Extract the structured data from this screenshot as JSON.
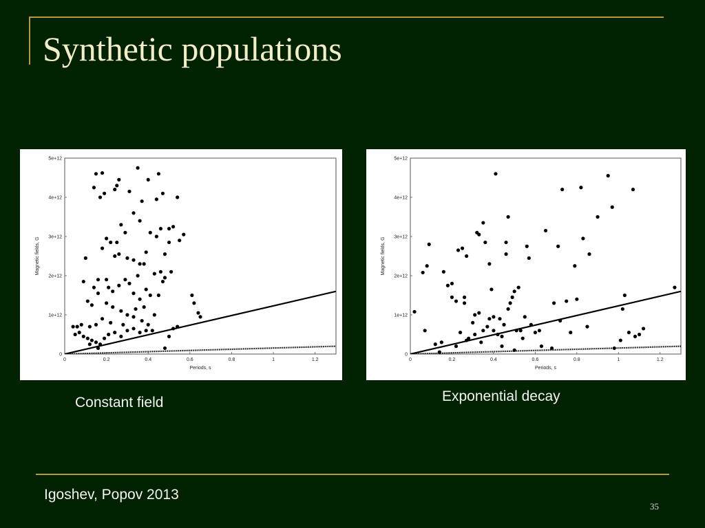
{
  "slide": {
    "title": "Synthetic populations",
    "footer_left": "Igoshev, Popov 2013",
    "page_number": "35",
    "colors": {
      "background": "#002200",
      "rule": "#b89a3a",
      "title": "#f3edc8",
      "text": "#f4f4f4"
    }
  },
  "captions": {
    "left": "Constant field",
    "right": "Exponential decay"
  },
  "chart_data": [
    {
      "type": "scatter",
      "xlabel": "Periods, s",
      "ylabel": "Magnetic fields, G",
      "xlim": [
        0,
        1.3
      ],
      "ylim": [
        0,
        5000000000000.0
      ],
      "xticks": [
        {
          "v": 0,
          "label": "0"
        },
        {
          "v": 0.2,
          "label": "0.2"
        },
        {
          "v": 0.4,
          "label": "0.4"
        },
        {
          "v": 0.6,
          "label": "0.6"
        },
        {
          "v": 0.8,
          "label": "0.8"
        },
        {
          "v": 1,
          "label": "1"
        },
        {
          "v": 1.2,
          "label": "1.2"
        }
      ],
      "yticks": [
        {
          "v": 0,
          "label": "0"
        },
        {
          "v": 1000000000000.0,
          "label": "1e+12"
        },
        {
          "v": 2000000000000.0,
          "label": "2e+12"
        },
        {
          "v": 3000000000000.0,
          "label": "3e+12"
        },
        {
          "v": 4000000000000.0,
          "label": "4e+12"
        },
        {
          "v": 5000000000000.0,
          "label": "5e+12"
        }
      ],
      "grid": false,
      "lines": [
        {
          "style": "solid",
          "points": [
            [
              0,
              0
            ],
            [
              1.3,
              1600000000000.0
            ]
          ]
        },
        {
          "style": "dotted",
          "points": [
            [
              0,
              0
            ],
            [
              1.3,
              200000000000.0
            ]
          ]
        }
      ],
      "points": [
        [
          0.15,
          4600000000000.0
        ],
        [
          0.18,
          4620000000000.0
        ],
        [
          0.14,
          4250000000000.0
        ],
        [
          0.17,
          4000000000000.0
        ],
        [
          0.19,
          4100000000000.0
        ],
        [
          0.24,
          4200000000000.0
        ],
        [
          0.25,
          4300000000000.0
        ],
        [
          0.26,
          4450000000000.0
        ],
        [
          0.31,
          4150000000000.0
        ],
        [
          0.35,
          4750000000000.0
        ],
        [
          0.4,
          4450000000000.0
        ],
        [
          0.45,
          4600000000000.0
        ],
        [
          0.47,
          4100000000000.0
        ],
        [
          0.54,
          4000000000000.0
        ],
        [
          0.44,
          3950000000000.0
        ],
        [
          0.37,
          3900000000000.0
        ],
        [
          0.33,
          3600000000000.0
        ],
        [
          0.36,
          3400000000000.0
        ],
        [
          0.27,
          3300000000000.0
        ],
        [
          0.29,
          3100000000000.0
        ],
        [
          0.25,
          2850000000000.0
        ],
        [
          0.2,
          2950000000000.0
        ],
        [
          0.22,
          2850000000000.0
        ],
        [
          0.18,
          2700000000000.0
        ],
        [
          0.1,
          2450000000000.0
        ],
        [
          0.24,
          2500000000000.0
        ],
        [
          0.26,
          2550000000000.0
        ],
        [
          0.3,
          2450000000000.0
        ],
        [
          0.33,
          2400000000000.0
        ],
        [
          0.36,
          2300000000000.0
        ],
        [
          0.41,
          3100000000000.0
        ],
        [
          0.44,
          3000000000000.0
        ],
        [
          0.46,
          3200000000000.0
        ],
        [
          0.5,
          3200000000000.0
        ],
        [
          0.52,
          3250000000000.0
        ],
        [
          0.55,
          2900000000000.0
        ],
        [
          0.57,
          3050000000000.0
        ],
        [
          0.5,
          2850000000000.0
        ],
        [
          0.48,
          2550000000000.0
        ],
        [
          0.39,
          2600000000000.0
        ],
        [
          0.38,
          2300000000000.0
        ],
        [
          0.35,
          2000000000000.0
        ],
        [
          0.43,
          2050000000000.0
        ],
        [
          0.46,
          2100000000000.0
        ],
        [
          0.51,
          2100000000000.0
        ],
        [
          0.48,
          1950000000000.0
        ],
        [
          0.2,
          1900000000000.0
        ],
        [
          0.16,
          1900000000000.0
        ],
        [
          0.14,
          1700000000000.0
        ],
        [
          0.09,
          1850000000000.0
        ],
        [
          0.11,
          1350000000000.0
        ],
        [
          0.13,
          1250000000000.0
        ],
        [
          0.16,
          1550000000000.0
        ],
        [
          0.21,
          1700000000000.0
        ],
        [
          0.23,
          1600000000000.0
        ],
        [
          0.26,
          1750000000000.0
        ],
        [
          0.29,
          1900000000000.0
        ],
        [
          0.31,
          1800000000000.0
        ],
        [
          0.33,
          1550000000000.0
        ],
        [
          0.36,
          1400000000000.0
        ],
        [
          0.39,
          1650000000000.0
        ],
        [
          0.41,
          1500000000000.0
        ],
        [
          0.45,
          1500000000000.0
        ],
        [
          0.47,
          1850000000000.0
        ],
        [
          0.2,
          1300000000000.0
        ],
        [
          0.23,
          1200000000000.0
        ],
        [
          0.27,
          1100000000000.0
        ],
        [
          0.3,
          1000000000000.0
        ],
        [
          0.33,
          950000000000.0
        ],
        [
          0.37,
          850000000000.0
        ],
        [
          0.4,
          750000000000.0
        ],
        [
          0.18,
          900000000000.0
        ],
        [
          0.15,
          750000000000.0
        ],
        [
          0.12,
          700000000000.0
        ],
        [
          0.08,
          750000000000.0
        ],
        [
          0.06,
          700000000000.0
        ],
        [
          0.04,
          700000000000.0
        ],
        [
          0.05,
          500000000000.0
        ],
        [
          0.07,
          550000000000.0
        ],
        [
          0.09,
          450000000000.0
        ],
        [
          0.11,
          400000000000.0
        ],
        [
          0.13,
          350000000000.0
        ],
        [
          0.15,
          300000000000.0
        ],
        [
          0.17,
          250000000000.0
        ],
        [
          0.19,
          400000000000.0
        ],
        [
          0.21,
          500000000000.0
        ],
        [
          0.24,
          550000000000.0
        ],
        [
          0.27,
          450000000000.0
        ],
        [
          0.3,
          600000000000.0
        ],
        [
          0.33,
          650000000000.0
        ],
        [
          0.36,
          550000000000.0
        ],
        [
          0.39,
          600000000000.0
        ],
        [
          0.42,
          600000000000.0
        ],
        [
          0.5,
          450000000000.0
        ],
        [
          0.52,
          650000000000.0
        ],
        [
          0.54,
          700000000000.0
        ],
        [
          0.48,
          150000000000.0
        ],
        [
          0.16,
          150000000000.0
        ],
        [
          0.12,
          250000000000.0
        ],
        [
          0.61,
          1500000000000.0
        ],
        [
          0.62,
          1300000000000.0
        ],
        [
          0.64,
          1050000000000.0
        ],
        [
          0.65,
          950000000000.0
        ],
        [
          0.22,
          800000000000.0
        ],
        [
          0.28,
          750000000000.0
        ],
        [
          0.34,
          1150000000000.0
        ],
        [
          0.43,
          1000000000000.0
        ],
        [
          0.38,
          1200000000000.0
        ]
      ]
    },
    {
      "type": "scatter",
      "xlabel": "Periods, s",
      "ylabel": "Magnetic fields, G",
      "xlim": [
        0,
        1.3
      ],
      "ylim": [
        0,
        5000000000000.0
      ],
      "xticks": [
        {
          "v": 0,
          "label": "0"
        },
        {
          "v": 0.2,
          "label": "0.2"
        },
        {
          "v": 0.4,
          "label": "0.4"
        },
        {
          "v": 0.6,
          "label": "0.6"
        },
        {
          "v": 0.8,
          "label": "0.8"
        },
        {
          "v": 1,
          "label": "1"
        },
        {
          "v": 1.2,
          "label": "1.2"
        }
      ],
      "yticks": [
        {
          "v": 0,
          "label": "0"
        },
        {
          "v": 1000000000000.0,
          "label": "1e+12"
        },
        {
          "v": 2000000000000.0,
          "label": "2e+12"
        },
        {
          "v": 3000000000000.0,
          "label": "3e+12"
        },
        {
          "v": 4000000000000.0,
          "label": "4e+12"
        },
        {
          "v": 5000000000000.0,
          "label": "5e+12"
        }
      ],
      "grid": false,
      "lines": [
        {
          "style": "solid",
          "points": [
            [
              0,
              0
            ],
            [
              1.3,
              1600000000000.0
            ]
          ]
        },
        {
          "style": "dotted",
          "points": [
            [
              0,
              0
            ],
            [
              1.3,
              200000000000.0
            ]
          ]
        }
      ],
      "points": [
        [
          0.02,
          1080000000000.0
        ],
        [
          0.06,
          2080000000000.0
        ],
        [
          0.08,
          2250000000000.0
        ],
        [
          0.09,
          2800000000000.0
        ],
        [
          0.07,
          600000000000.0
        ],
        [
          0.14,
          50000000000.0
        ],
        [
          0.15,
          300000000000.0
        ],
        [
          0.16,
          2100000000000.0
        ],
        [
          0.18,
          1750000000000.0
        ],
        [
          0.2,
          1800000000000.0
        ],
        [
          0.2,
          1450000000000.0
        ],
        [
          0.22,
          1350000000000.0
        ],
        [
          0.23,
          2650000000000.0
        ],
        [
          0.24,
          550000000000.0
        ],
        [
          0.25,
          2700000000000.0
        ],
        [
          0.26,
          1450000000000.0
        ],
        [
          0.26,
          1300000000000.0
        ],
        [
          0.27,
          2500000000000.0
        ],
        [
          0.28,
          400000000000.0
        ],
        [
          0.3,
          800000000000.0
        ],
        [
          0.31,
          1000000000000.0
        ],
        [
          0.31,
          500000000000.0
        ],
        [
          0.32,
          3100000000000.0
        ],
        [
          0.33,
          3050000000000.0
        ],
        [
          0.33,
          1050000000000.0
        ],
        [
          0.35,
          3350000000000.0
        ],
        [
          0.35,
          600000000000.0
        ],
        [
          0.36,
          2850000000000.0
        ],
        [
          0.37,
          700000000000.0
        ],
        [
          0.38,
          2300000000000.0
        ],
        [
          0.38,
          900000000000.0
        ],
        [
          0.39,
          1650000000000.0
        ],
        [
          0.4,
          600000000000.0
        ],
        [
          0.41,
          4600000000000.0
        ],
        [
          0.42,
          500000000000.0
        ],
        [
          0.43,
          900000000000.0
        ],
        [
          0.44,
          450000000000.0
        ],
        [
          0.45,
          750000000000.0
        ],
        [
          0.46,
          2850000000000.0
        ],
        [
          0.46,
          2550000000000.0
        ],
        [
          0.47,
          3500000000000.0
        ],
        [
          0.48,
          1300000000000.0
        ],
        [
          0.49,
          1450000000000.0
        ],
        [
          0.5,
          1600000000000.0
        ],
        [
          0.51,
          600000000000.0
        ],
        [
          0.52,
          1700000000000.0
        ],
        [
          0.53,
          600000000000.0
        ],
        [
          0.54,
          400000000000.0
        ],
        [
          0.56,
          2750000000000.0
        ],
        [
          0.57,
          2450000000000.0
        ],
        [
          0.58,
          750000000000.0
        ],
        [
          0.6,
          550000000000.0
        ],
        [
          0.63,
          200000000000.0
        ],
        [
          0.65,
          3150000000000.0
        ],
        [
          0.68,
          150000000000.0
        ],
        [
          0.69,
          1300000000000.0
        ],
        [
          0.71,
          2750000000000.0
        ],
        [
          0.72,
          850000000000.0
        ],
        [
          0.73,
          4200000000000.0
        ],
        [
          0.75,
          1350000000000.0
        ],
        [
          0.77,
          550000000000.0
        ],
        [
          0.79,
          2250000000000.0
        ],
        [
          0.8,
          1400000000000.0
        ],
        [
          0.82,
          4250000000000.0
        ],
        [
          0.83,
          2950000000000.0
        ],
        [
          0.85,
          700000000000.0
        ],
        [
          0.86,
          2550000000000.0
        ],
        [
          0.9,
          3500000000000.0
        ],
        [
          0.95,
          4550000000000.0
        ],
        [
          0.97,
          3750000000000.0
        ],
        [
          0.98,
          150000000000.0
        ],
        [
          1.01,
          350000000000.0
        ],
        [
          1.02,
          1150000000000.0
        ],
        [
          1.03,
          1500000000000.0
        ],
        [
          1.05,
          550000000000.0
        ],
        [
          1.07,
          4200000000000.0
        ],
        [
          1.08,
          450000000000.0
        ],
        [
          1.1,
          500000000000.0
        ],
        [
          1.12,
          650000000000.0
        ],
        [
          1.27,
          1700000000000.0
        ],
        [
          0.12,
          250000000000.0
        ],
        [
          0.22,
          200000000000.0
        ],
        [
          0.27,
          350000000000.0
        ],
        [
          0.34,
          300000000000.0
        ],
        [
          0.4,
          950000000000.0
        ],
        [
          0.44,
          200000000000.0
        ],
        [
          0.5,
          100000000000.0
        ],
        [
          0.62,
          600000000000.0
        ],
        [
          0.55,
          950000000000.0
        ],
        [
          0.47,
          1150000000000.0
        ]
      ]
    }
  ]
}
